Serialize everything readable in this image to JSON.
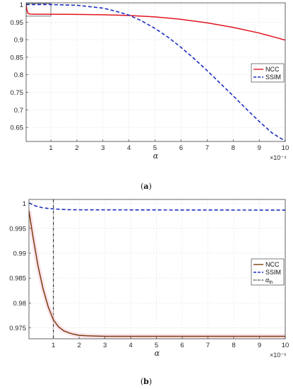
{
  "chart_data": [
    {
      "type": "line",
      "panel_label": "(a)",
      "xlabel": "α",
      "x_exponent": "×10⁻⁴",
      "xlim": [
        0.05,
        10
      ],
      "ylim": [
        0.61,
        1.005
      ],
      "xticks": [
        1,
        2,
        3,
        4,
        5,
        6,
        7,
        8,
        9,
        10
      ],
      "yticks": [
        0.65,
        0.7,
        0.75,
        0.8,
        0.85,
        0.9,
        0.95,
        1
      ],
      "ytick_labels": [
        "0.65",
        "0.7",
        "0.75",
        "0.8",
        "0.85",
        "0.9",
        "0.95",
        "1"
      ],
      "grid": true,
      "legend_position": "right",
      "inset_box": {
        "x": [
          0.05,
          1
        ],
        "y": [
          0.967,
          1.003
        ]
      },
      "series": [
        {
          "name": "NCC",
          "color": "#e0141e",
          "style": "solid",
          "x": [
            0.05,
            0.08,
            0.12,
            0.2,
            0.4,
            1,
            2,
            3,
            4,
            5,
            6,
            7,
            8,
            9,
            10
          ],
          "y": [
            0.999,
            0.985,
            0.975,
            0.973,
            0.9725,
            0.9725,
            0.972,
            0.971,
            0.969,
            0.965,
            0.958,
            0.948,
            0.935,
            0.919,
            0.899
          ]
        },
        {
          "name": "SSIM",
          "color": "#1d2fc0",
          "style": "dashed",
          "x": [
            0.05,
            1,
            2,
            3,
            3.5,
            4,
            4.5,
            5,
            5.5,
            6,
            6.5,
            7,
            7.5,
            8,
            8.5,
            9,
            9.5,
            10
          ],
          "y": [
            1.0,
            1.0,
            0.998,
            0.99,
            0.981,
            0.97,
            0.953,
            0.932,
            0.907,
            0.878,
            0.846,
            0.812,
            0.776,
            0.74,
            0.703,
            0.667,
            0.634,
            0.611
          ]
        }
      ]
    },
    {
      "type": "line",
      "panel_label": "(b)",
      "xlabel": "α",
      "x_exponent": "×10⁻⁵",
      "xlim": [
        0.05,
        10
      ],
      "ylim": [
        0.9728,
        1.0008
      ],
      "xticks": [
        1,
        2,
        3,
        4,
        5,
        6,
        7,
        8,
        9,
        10
      ],
      "yticks": [
        0.975,
        0.98,
        0.985,
        0.99,
        0.995,
        1
      ],
      "ytick_labels": [
        "0.975",
        "0.98",
        "0.985",
        "0.99",
        "0.995",
        "1"
      ],
      "grid": true,
      "legend_position": "right",
      "vline": {
        "name": "α_th",
        "x": 1
      },
      "series": [
        {
          "name": "NCC",
          "color": "#7a3b0a",
          "style": "solid",
          "x": [
            0.05,
            0.2,
            0.4,
            0.6,
            0.8,
            1.0,
            1.2,
            1.4,
            1.6,
            1.8,
            2.0,
            2.3,
            2.6,
            3,
            4,
            6,
            8,
            10
          ],
          "y": [
            0.9985,
            0.9935,
            0.9875,
            0.9828,
            0.9792,
            0.9766,
            0.9752,
            0.9744,
            0.974,
            0.9737,
            0.9735,
            0.9734,
            0.97335,
            0.9733,
            0.9733,
            0.9733,
            0.9733,
            0.9733
          ]
        },
        {
          "name": "SSIM",
          "color": "#1d2fc0",
          "style": "dashed",
          "x": [
            0.05,
            0.3,
            0.6,
            1,
            1.5,
            2,
            4,
            6,
            8,
            10
          ],
          "y": [
            1.0001,
            0.9995,
            0.9991,
            0.9989,
            0.99875,
            0.99872,
            0.9987,
            0.99868,
            0.99867,
            0.99866
          ]
        }
      ]
    }
  ]
}
